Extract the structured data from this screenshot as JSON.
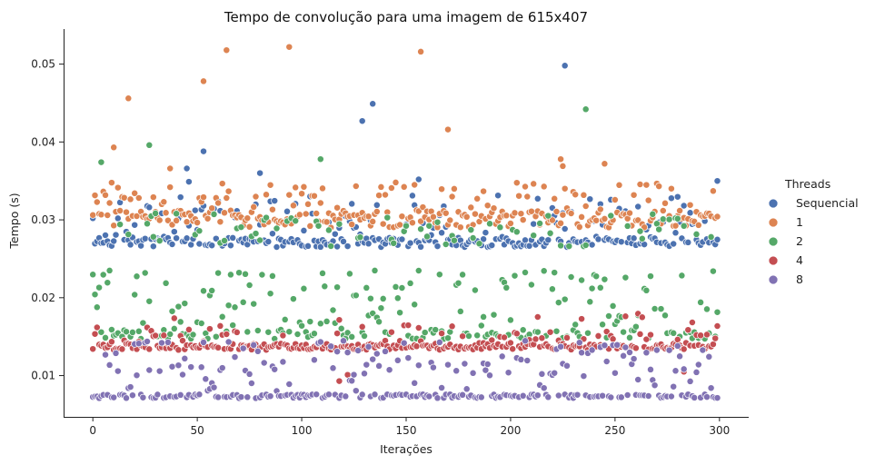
{
  "chart_data": {
    "type": "scatter",
    "title": "Tempo de convolução para uma imagem de 615x407",
    "xlabel": "Iterações",
    "ylabel": "Tempo (s)",
    "xlim": [
      -14,
      314
    ],
    "ylim": [
      0.0047,
      0.0545
    ],
    "x_ticks": [
      0,
      50,
      100,
      150,
      200,
      250,
      300
    ],
    "y_ticks": [
      0.01,
      0.02,
      0.03,
      0.04,
      0.05
    ],
    "x_tick_labels": [
      "0",
      "50",
      "100",
      "150",
      "200",
      "250",
      "300"
    ],
    "y_tick_labels": [
      "0.01",
      "0.02",
      "0.03",
      "0.04",
      "0.05"
    ],
    "grid": false,
    "legend": {
      "title": "Threads",
      "placement": "right"
    },
    "iterations": 300,
    "series": [
      {
        "name": "Sequencial",
        "color": "#4c72b0",
        "baseline": 0.0268,
        "outliers": [
          [
            45,
            0.0366
          ],
          [
            46,
            0.0349
          ],
          [
            53,
            0.0388
          ],
          [
            80,
            0.036
          ],
          [
            129,
            0.0427
          ],
          [
            134,
            0.0449
          ],
          [
            156,
            0.0352
          ],
          [
            226,
            0.0498
          ],
          [
            299,
            0.035
          ]
        ]
      },
      {
        "name": "1",
        "color": "#dd8452",
        "baseline": 0.0298,
        "outliers": [
          [
            17,
            0.0456
          ],
          [
            10,
            0.0393
          ],
          [
            37,
            0.0366
          ],
          [
            53,
            0.0478
          ],
          [
            64,
            0.0518
          ],
          [
            94,
            0.0522
          ],
          [
            157,
            0.0516
          ],
          [
            170,
            0.0416
          ],
          [
            224,
            0.0378
          ],
          [
            225,
            0.0369
          ],
          [
            245,
            0.0372
          ]
        ]
      },
      {
        "name": "2",
        "color": "#55a868",
        "baseline": 0.0148,
        "outliers": [
          [
            4,
            0.0374
          ],
          [
            27,
            0.0396
          ],
          [
            109,
            0.0378
          ],
          [
            236,
            0.0442
          ]
        ]
      },
      {
        "name": "4",
        "color": "#c44e52",
        "baseline": 0.0136,
        "outliers": [
          [
            118,
            0.0093
          ],
          [
            122,
            0.0101
          ],
          [
            283,
            0.0105
          ]
        ]
      },
      {
        "name": "8",
        "color": "#8172b3",
        "baseline": 0.0073,
        "outliers": []
      }
    ]
  }
}
